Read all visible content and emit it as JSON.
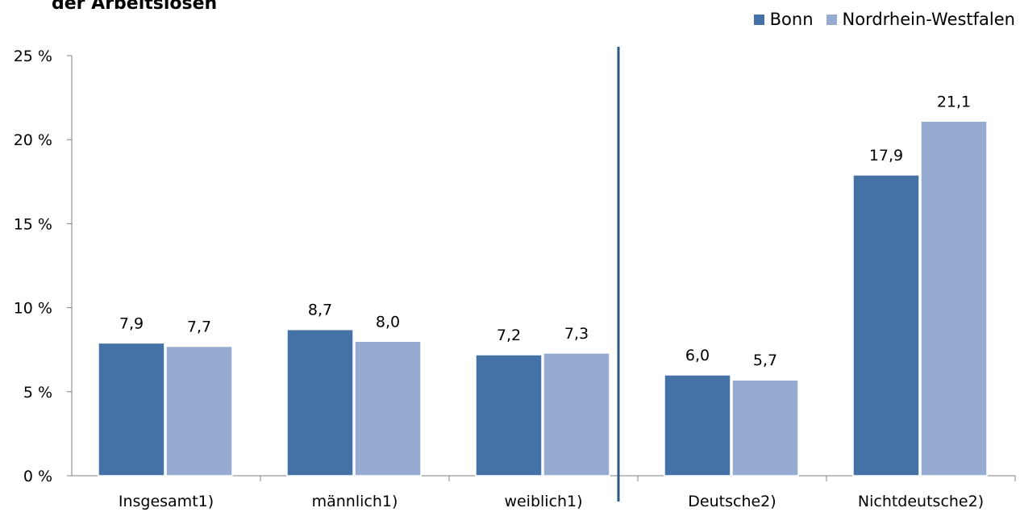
{
  "chart_data": {
    "type": "bar",
    "title": "der Arbeitslosen",
    "categories": [
      "Insgesamt1)",
      "männlich1)",
      "weiblich1)",
      "Deutsche2)",
      "Nichtdeutsche2)"
    ],
    "series": [
      {
        "name": "Bonn",
        "color": "#4472a6",
        "values": [
          7.9,
          8.7,
          7.2,
          6.0,
          17.9
        ],
        "labels": [
          "7,9",
          "8,7",
          "7,2",
          "6,0",
          "17,9"
        ]
      },
      {
        "name": "Nordrhein-Westfalen",
        "color": "#95abd2",
        "values": [
          7.7,
          8.0,
          7.3,
          5.7,
          21.1
        ],
        "labels": [
          "7,7",
          "8,0",
          "7,3",
          "5,7",
          "21,1"
        ]
      }
    ],
    "ylim": [
      0,
      25
    ],
    "yticks": [
      0,
      5,
      10,
      15,
      20,
      25
    ],
    "ytick_labels": [
      "0 %",
      "5 %",
      "10 %",
      "15 %",
      "20 %",
      "25 %"
    ],
    "divider_between": [
      2,
      3
    ],
    "divider_color": "#2c5985",
    "legend_position": "top-right",
    "grid": false
  }
}
